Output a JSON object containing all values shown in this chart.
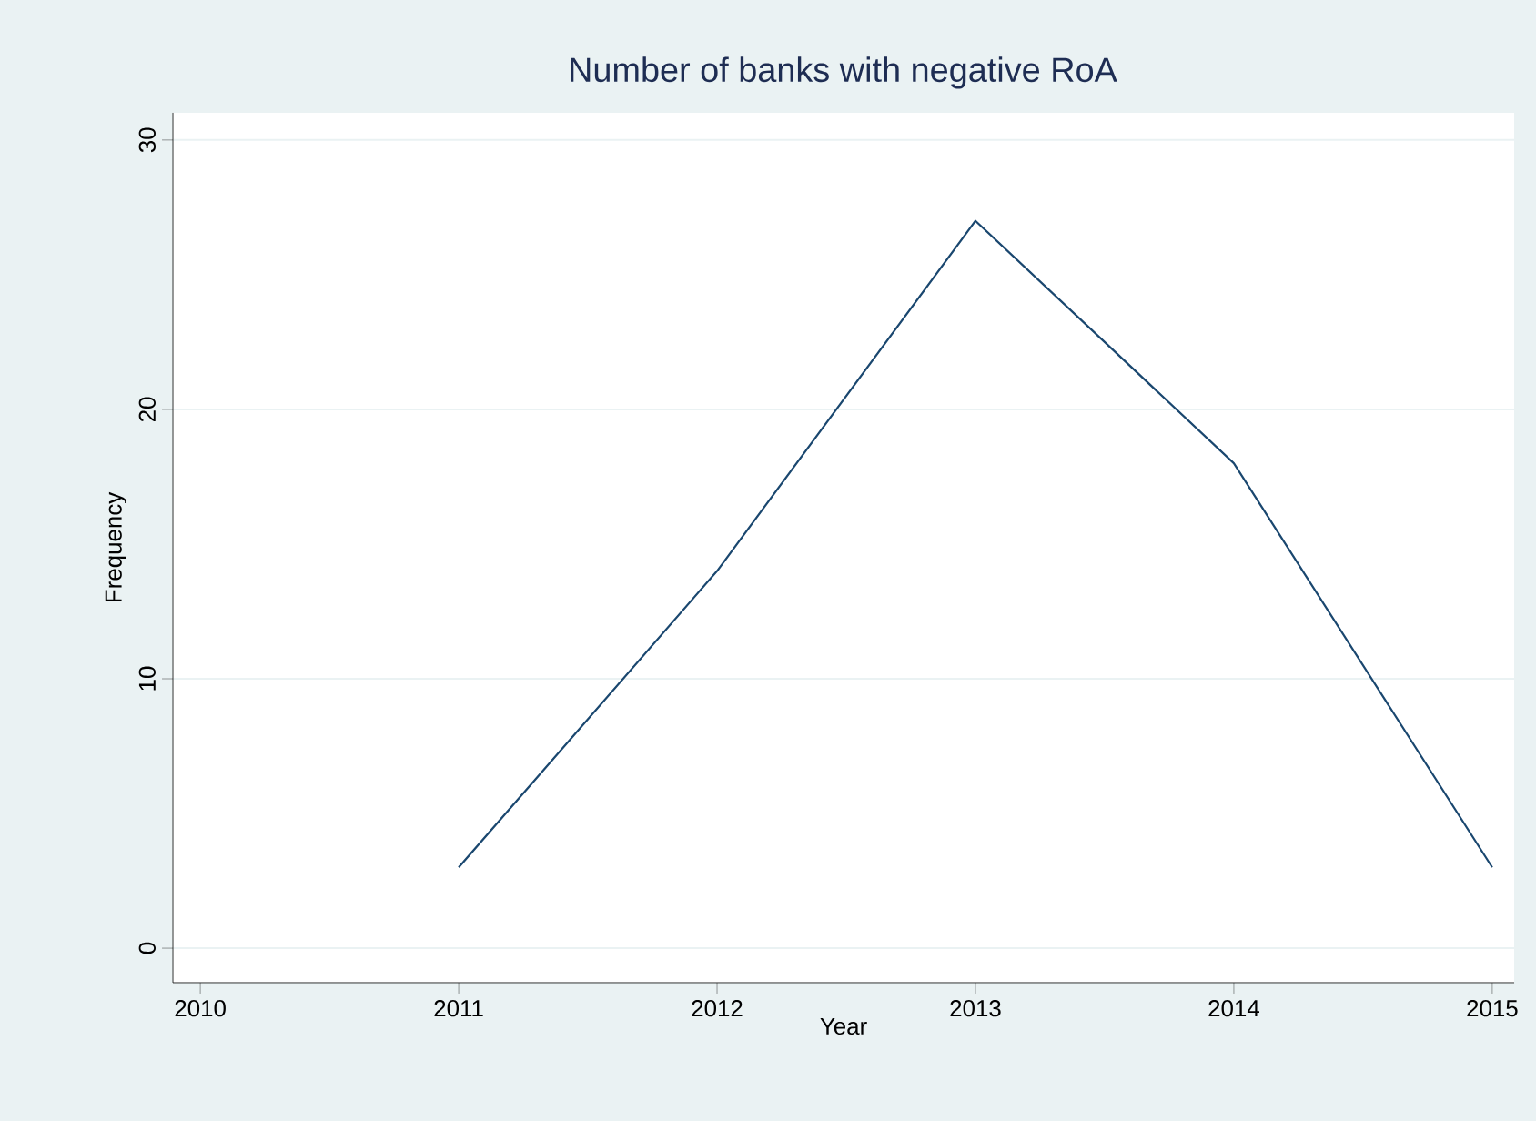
{
  "chart_data": {
    "type": "line",
    "title": "Number of banks with negative RoA",
    "xlabel": "Year",
    "ylabel": "Frequency",
    "x": [
      2011,
      2012,
      2013,
      2014,
      2015
    ],
    "series": [
      {
        "color": "#1a476f",
        "values": [
          3,
          14,
          27,
          18,
          3
        ]
      }
    ],
    "xlim": [
      2009.894,
      2015.085
    ],
    "ylim": [
      -1.28,
      31.01
    ],
    "xticks": [
      2010,
      2011,
      2012,
      2013,
      2014,
      2015
    ],
    "yticks": [
      0,
      10,
      20,
      30
    ],
    "grid": "y"
  }
}
